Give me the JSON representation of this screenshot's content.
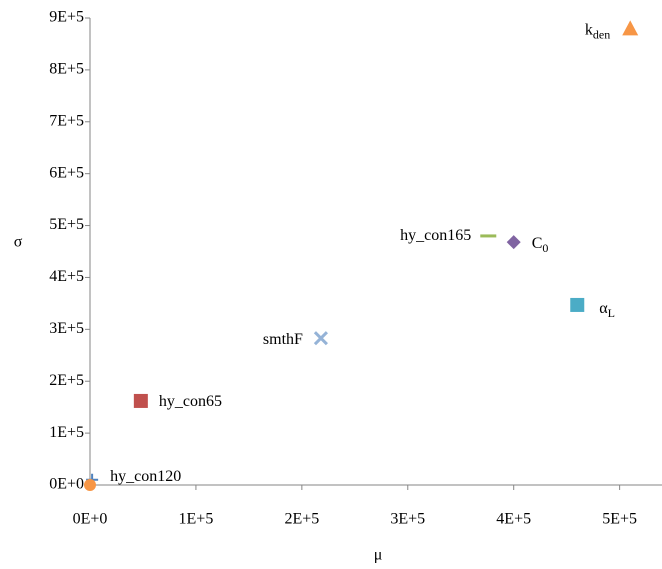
{
  "chart_data": {
    "type": "scatter",
    "x_label": "μ",
    "y_label": "σ",
    "xlim": [
      0,
      540000
    ],
    "ylim": [
      0,
      900000
    ],
    "xticks": [
      {
        "value": 0,
        "label": "0E+0"
      },
      {
        "value": 100000,
        "label": "1E+5"
      },
      {
        "value": 200000,
        "label": "2E+5"
      },
      {
        "value": 300000,
        "label": "3E+5"
      },
      {
        "value": 400000,
        "label": "4E+5"
      },
      {
        "value": 500000,
        "label": "5E+5"
      }
    ],
    "yticks": [
      {
        "value": 0,
        "label": "0E+0"
      },
      {
        "value": 100000,
        "label": "1E+5"
      },
      {
        "value": 200000,
        "label": "2E+5"
      },
      {
        "value": 300000,
        "label": "3E+5"
      },
      {
        "value": 400000,
        "label": "4E+5"
      },
      {
        "value": 500000,
        "label": "5E+5"
      },
      {
        "value": 600000,
        "label": "6E+5"
      },
      {
        "value": 700000,
        "label": "7E+5"
      },
      {
        "value": 800000,
        "label": "8E+5"
      },
      {
        "value": 900000,
        "label": "9E+5"
      }
    ],
    "points": [
      {
        "label": "k",
        "label_sub": "den",
        "x": 510000,
        "y": 880000,
        "marker": "triangle",
        "color": "#f79646"
      },
      {
        "label": "hy_con165",
        "x": 376000,
        "y": 480000,
        "marker": "dash",
        "color": "#9bbb59"
      },
      {
        "label": "C",
        "label_sub": "0",
        "x": 400000,
        "y": 468000,
        "marker": "diamond",
        "color": "#8064a2"
      },
      {
        "label": "α",
        "label_sub": "L",
        "x": 460000,
        "y": 347000,
        "marker": "square",
        "color": "#4bacc6"
      },
      {
        "label": "smthF",
        "x": 218000,
        "y": 283000,
        "marker": "x",
        "color": "#95b3d7"
      },
      {
        "label": "hy_con65",
        "x": 48000,
        "y": 162000,
        "marker": "square",
        "color": "#c0504d"
      },
      {
        "label": "hy_con120",
        "x": 2000,
        "y": 10000,
        "marker": "plus",
        "color": "#4f81bd"
      },
      {
        "label": null,
        "x": 0,
        "y": 0,
        "marker": "circle",
        "color": "#f79646"
      }
    ]
  }
}
